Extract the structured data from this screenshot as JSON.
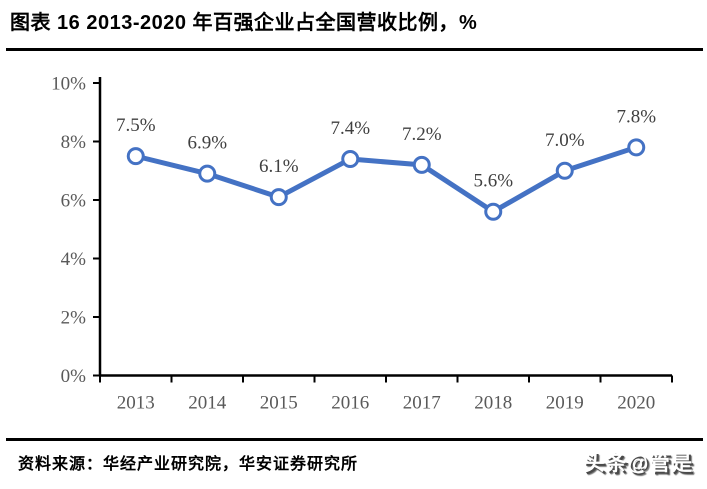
{
  "header": {
    "title": "图表 16 2013-2020 年百强企业占全国营收比例，%"
  },
  "footer": {
    "source": "资料来源：华经产业研究院，华安证券研究所",
    "watermark": "头条@管是"
  },
  "chart_data": {
    "type": "line",
    "title": "图表 16 2013-2020 年百强企业占全国营收比例，%",
    "categories": [
      "2013",
      "2014",
      "2015",
      "2016",
      "2017",
      "2018",
      "2019",
      "2020"
    ],
    "values": [
      7.5,
      6.9,
      6.1,
      7.4,
      7.2,
      5.6,
      7.0,
      7.8
    ],
    "point_labels": [
      "7.5%",
      "6.9%",
      "6.1%",
      "7.4%",
      "7.2%",
      "5.6%",
      "7.0%",
      "7.8%"
    ],
    "xlabel": "",
    "ylabel": "",
    "ylim": [
      0,
      10
    ],
    "ytick_step": 2,
    "ytick_labels": [
      "0%",
      "2%",
      "4%",
      "6%",
      "8%",
      "10%"
    ],
    "grid": false,
    "legend_position": "none",
    "colors": {
      "line": "#4472C4",
      "marker_fill": "#FFFFFF",
      "marker_stroke": "#4472C4",
      "axis": "#000000",
      "tick_label": "#595959",
      "data_label": "#404040"
    }
  }
}
